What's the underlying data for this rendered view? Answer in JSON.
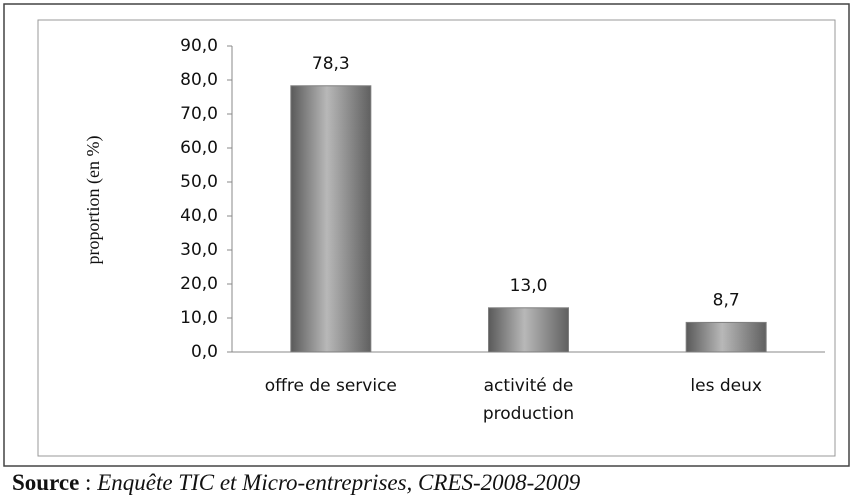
{
  "chart_data": {
    "type": "bar",
    "y_axis_label": "proportion (en %)",
    "categories": [
      "offre de service",
      "activité de production",
      "les deux"
    ],
    "values": [
      78.3,
      13.0,
      8.7
    ],
    "value_labels": [
      "78,3",
      "13,0",
      "8,7"
    ],
    "color": "#7f7f7f",
    "ylim": [
      0,
      90
    ],
    "yticks": [
      {
        "value": 0,
        "label": "0,0"
      },
      {
        "value": 10,
        "label": "10,0"
      },
      {
        "value": 20,
        "label": "20,0"
      },
      {
        "value": 30,
        "label": "30,0"
      },
      {
        "value": 40,
        "label": "40,0"
      },
      {
        "value": 50,
        "label": "50,0"
      },
      {
        "value": 60,
        "label": "60,0"
      },
      {
        "value": 70,
        "label": "70,0"
      },
      {
        "value": 80,
        "label": "80,0"
      },
      {
        "value": 90,
        "label": "90,0"
      }
    ],
    "grid": false,
    "source_label": "Source",
    "source_separator": ":",
    "source_text": "Enquête TIC et Micro-entreprises, CRES-2008-2009"
  }
}
